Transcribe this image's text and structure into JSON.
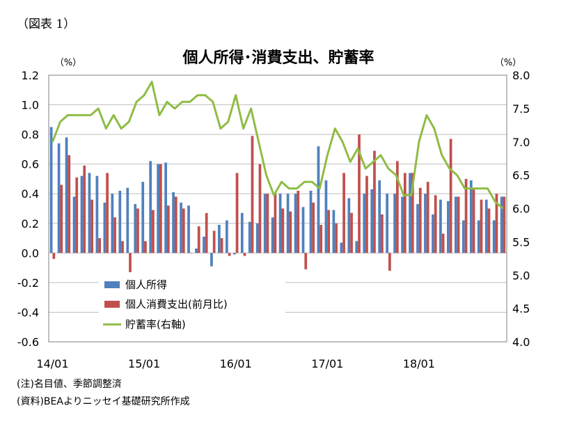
{
  "figure_label": "（図表 1）",
  "notes": {
    "note": "(注)名目値、季節調整済",
    "source": "(資料)BEAよりニッセイ基礎研究所作成"
  },
  "chart_data": {
    "type": "bar",
    "title": "個人所得･消費支出、貯蓄率",
    "left_unit": "（%）",
    "right_unit": "（%）",
    "ylim_left": [
      -0.6,
      1.2
    ],
    "ylim_right": [
      4.0,
      8.0
    ],
    "yticks_left": [
      "1.2",
      "1.0",
      "0.8",
      "0.6",
      "0.4",
      "0.2",
      "0.0",
      "-0.2",
      "-0.4",
      "-0.6"
    ],
    "yticks_right": [
      "8.0",
      "7.5",
      "7.0",
      "6.5",
      "6.0",
      "5.5",
      "5.0",
      "4.5",
      "4.0"
    ],
    "x_tick_labels": [
      {
        "label": "14/01",
        "month_index": 0
      },
      {
        "label": "15/01",
        "month_index": 12
      },
      {
        "label": "16/01",
        "month_index": 24
      },
      {
        "label": "17/01",
        "month_index": 36
      },
      {
        "label": "18/01",
        "month_index": 48
      }
    ],
    "grid": "horizontal",
    "legend_position": "lower-left",
    "colors": {
      "income": "#4f81bd",
      "consumption": "#c0504d",
      "saving": "#8fbc45"
    },
    "categories": [
      "2014-01",
      "2014-02",
      "2014-03",
      "2014-04",
      "2014-05",
      "2014-06",
      "2014-07",
      "2014-08",
      "2014-09",
      "2014-10",
      "2014-11",
      "2014-12",
      "2015-01",
      "2015-02",
      "2015-03",
      "2015-04",
      "2015-05",
      "2015-06",
      "2015-07",
      "2015-08",
      "2015-09",
      "2015-10",
      "2015-11",
      "2015-12",
      "2016-01",
      "2016-02",
      "2016-03",
      "2016-04",
      "2016-05",
      "2016-06",
      "2016-07",
      "2016-08",
      "2016-09",
      "2016-10",
      "2016-11",
      "2016-12",
      "2017-01",
      "2017-02",
      "2017-03",
      "2017-04",
      "2017-05",
      "2017-06",
      "2017-07",
      "2017-08",
      "2017-09",
      "2017-10",
      "2017-11",
      "2017-12",
      "2018-01",
      "2018-02",
      "2018-03",
      "2018-04",
      "2018-05",
      "2018-06",
      "2018-07",
      "2018-08",
      "2018-09",
      "2018-10",
      "2018-11",
      "2018-12"
    ],
    "series": [
      {
        "name": "個人所得",
        "axis": "left",
        "kind": "bar",
        "values": [
          0.85,
          0.74,
          0.78,
          0.38,
          0.52,
          0.54,
          0.52,
          0.34,
          0.4,
          0.42,
          0.44,
          0.33,
          0.48,
          0.62,
          0.6,
          0.61,
          0.41,
          0.34,
          0.32,
          0.03,
          0.11,
          -0.09,
          0.19,
          0.22,
          -0.01,
          0.27,
          0.21,
          0.2,
          0.4,
          0.24,
          0.4,
          0.4,
          0.4,
          0.31,
          0.42,
          0.72,
          0.49,
          0.29,
          0.07,
          0.37,
          0.08,
          0.4,
          0.43,
          0.49,
          0.4,
          0.4,
          0.38,
          0.54,
          0.33,
          0.4,
          0.26,
          0.36,
          0.35,
          0.38,
          0.22,
          0.49,
          0.22,
          0.36,
          0.22,
          0.38
        ]
      },
      {
        "name": "個人消費支出(前月比)",
        "axis": "left",
        "kind": "bar",
        "values": [
          -0.04,
          0.46,
          0.66,
          0.51,
          0.59,
          0.36,
          0.1,
          0.54,
          0.24,
          0.08,
          -0.13,
          0.3,
          0.08,
          0.29,
          0.6,
          0.32,
          0.38,
          0.3,
          0.0,
          0.18,
          0.27,
          0.15,
          0.1,
          -0.02,
          0.54,
          -0.02,
          0.79,
          0.6,
          0.4,
          0.4,
          0.3,
          0.28,
          0.42,
          -0.11,
          0.34,
          0.19,
          0.29,
          0.2,
          0.54,
          0.27,
          0.8,
          0.52,
          0.69,
          0.26,
          -0.12,
          0.62,
          0.54,
          0.54,
          0.44,
          0.48,
          0.39,
          0.13,
          0.77,
          0.38,
          0.5,
          0.44,
          0.36,
          0.3,
          0.4,
          0.38
        ]
      },
      {
        "name": "貯蓄率(右軸)",
        "axis": "right",
        "kind": "line",
        "values": [
          7.0,
          7.3,
          7.4,
          7.4,
          7.4,
          7.4,
          7.5,
          7.2,
          7.4,
          7.2,
          7.3,
          7.6,
          7.7,
          7.9,
          7.4,
          7.6,
          7.5,
          7.6,
          7.6,
          7.7,
          7.7,
          7.6,
          7.2,
          7.3,
          7.7,
          7.2,
          7.5,
          7.0,
          6.5,
          6.2,
          6.4,
          6.3,
          6.3,
          6.4,
          6.4,
          6.3,
          6.8,
          7.2,
          7.0,
          6.7,
          6.9,
          6.6,
          6.7,
          6.8,
          6.6,
          6.5,
          6.2,
          6.2,
          7.0,
          7.4,
          7.2,
          6.8,
          6.6,
          6.5,
          6.3,
          6.3,
          6.3,
          6.3,
          6.1,
          6.0
        ]
      }
    ]
  }
}
